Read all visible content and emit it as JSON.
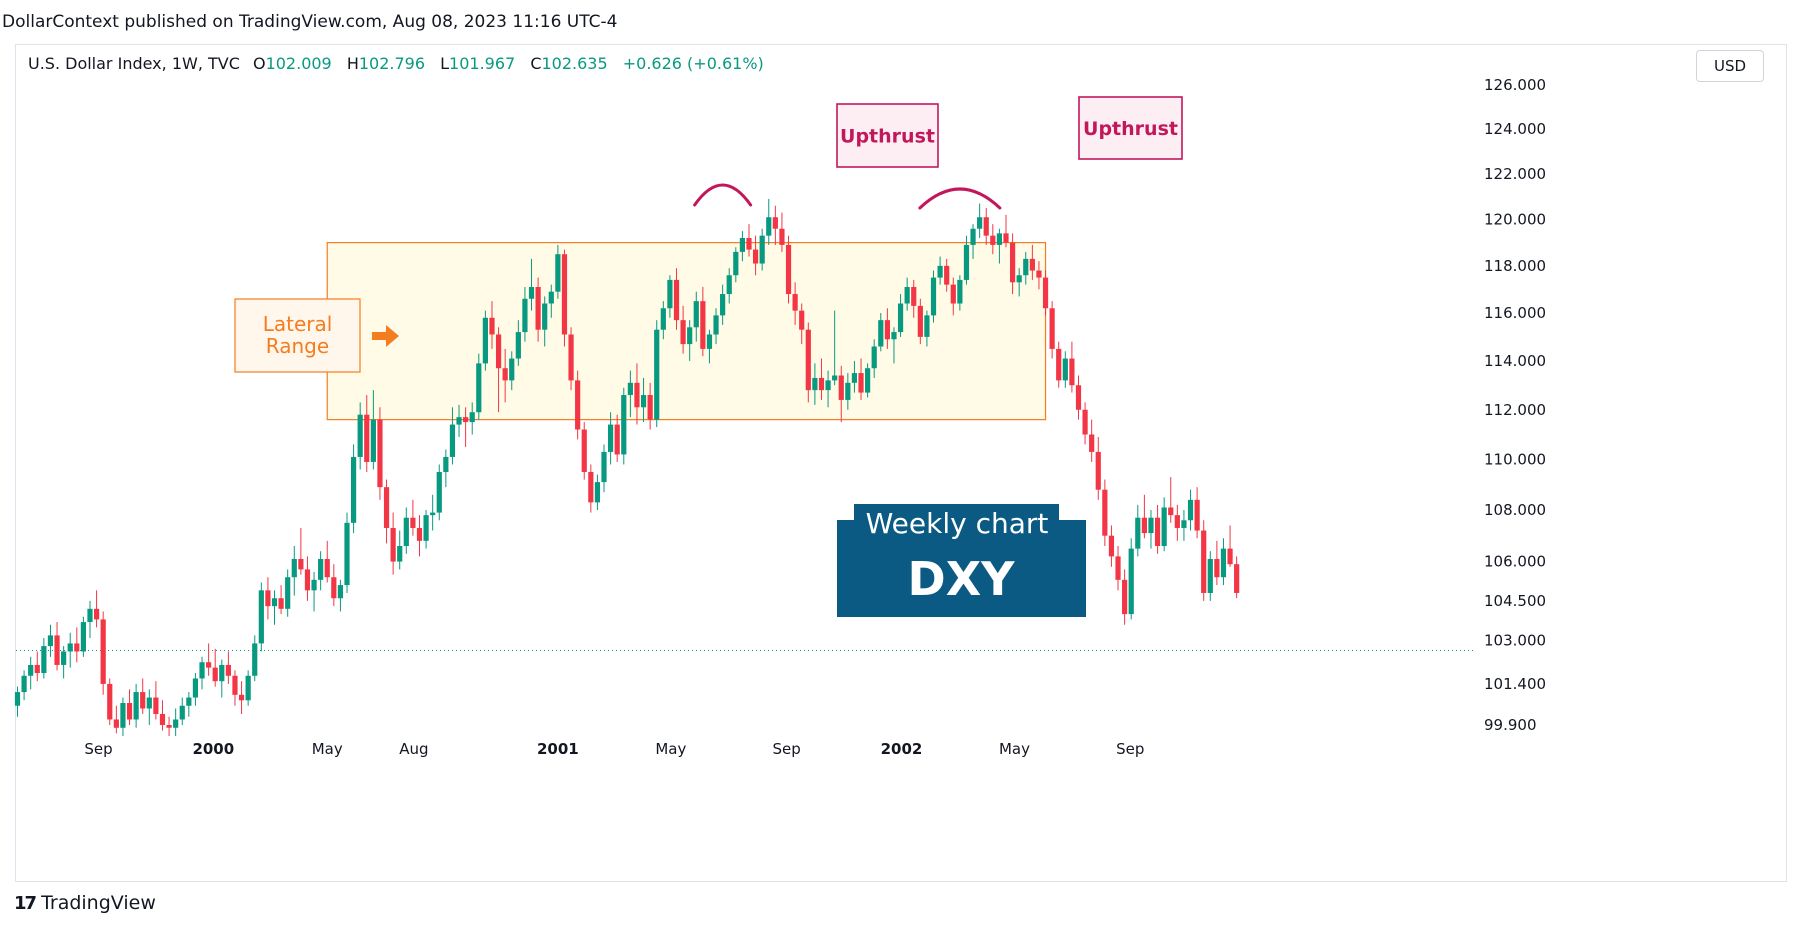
{
  "publish_header": "DollarContext published on TradingView.com, Aug 08, 2023 11:16 UTC-4",
  "legend": {
    "symbol": "U.S. Dollar Index, 1W, TVC",
    "open_label": "O",
    "open": "102.009",
    "high_label": "H",
    "high": "102.796",
    "low_label": "L",
    "low": "101.967",
    "close_label": "C",
    "close": "102.635",
    "change": "+0.626 (+0.61%)"
  },
  "currency": "USD",
  "footer_brand": "TradingView",
  "colors": {
    "up": "#089981",
    "down": "#f23645",
    "range_fill": "#fffbe6",
    "range_border": "#f57c1f",
    "upthrust": "#c2185b",
    "badge": "#0b5a84"
  },
  "chart_data": {
    "type": "candlestick",
    "title": "",
    "xlabel": "",
    "ylabel": "",
    "y_scale": "log",
    "ylim": [
      99.9,
      126.0
    ],
    "y_ticks": [
      126.0,
      124.0,
      122.0,
      120.0,
      118.0,
      116.0,
      114.0,
      112.0,
      110.0,
      108.0,
      106.0,
      104.5,
      103.0,
      101.4,
      99.9
    ],
    "y_tick_labels": [
      "126.000",
      "124.000",
      "122.000",
      "120.000",
      "118.000",
      "116.000",
      "114.000",
      "112.000",
      "110.000",
      "108.000",
      "106.000",
      "104.500",
      "103.000",
      "101.400",
      "99.900"
    ],
    "x_tick_labels": [
      "Sep",
      "2000",
      "May",
      "Aug",
      "2001",
      "May",
      "Sep",
      "2002",
      "May",
      "Sep"
    ],
    "x_tick_dates": [
      "1999-09-01",
      "2000-01-01",
      "2000-05-01",
      "2000-08-01",
      "2001-01-01",
      "2001-05-01",
      "2001-09-01",
      "2002-01-01",
      "2002-05-01",
      "2002-09-01"
    ],
    "candles_start": "1999-06-07",
    "candles_interval": "1W",
    "candles": [
      [
        100.6,
        101.3,
        100.2,
        101.1
      ],
      [
        101.1,
        101.9,
        100.8,
        101.7
      ],
      [
        101.7,
        102.4,
        101.2,
        102.1
      ],
      [
        102.1,
        102.6,
        101.5,
        101.8
      ],
      [
        101.8,
        103.1,
        101.6,
        102.8
      ],
      [
        102.8,
        103.6,
        102.4,
        103.2
      ],
      [
        103.2,
        103.7,
        101.9,
        102.1
      ],
      [
        102.1,
        102.8,
        101.6,
        102.6
      ],
      [
        102.6,
        103.3,
        102.0,
        102.9
      ],
      [
        102.9,
        103.5,
        102.2,
        102.6
      ],
      [
        102.6,
        103.9,
        102.4,
        103.7
      ],
      [
        103.7,
        104.5,
        103.1,
        104.2
      ],
      [
        104.2,
        104.9,
        103.5,
        103.8
      ],
      [
        103.8,
        104.1,
        101.0,
        101.4
      ],
      [
        101.4,
        101.6,
        99.9,
        100.1
      ],
      [
        100.1,
        100.6,
        99.6,
        99.8
      ],
      [
        99.8,
        100.9,
        99.5,
        100.7
      ],
      [
        100.7,
        101.2,
        99.9,
        100.1
      ],
      [
        100.1,
        101.4,
        99.8,
        101.1
      ],
      [
        101.1,
        101.6,
        100.3,
        100.5
      ],
      [
        100.5,
        101.2,
        99.9,
        100.9
      ],
      [
        100.9,
        101.5,
        100.1,
        100.3
      ],
      [
        100.3,
        100.8,
        99.7,
        99.9
      ],
      [
        99.9,
        100.2,
        99.5,
        99.8
      ],
      [
        99.8,
        100.5,
        99.5,
        100.1
      ],
      [
        100.1,
        100.9,
        99.9,
        100.6
      ],
      [
        100.6,
        101.1,
        100.2,
        100.9
      ],
      [
        100.9,
        101.8,
        100.6,
        101.6
      ],
      [
        101.6,
        102.4,
        101.2,
        102.2
      ],
      [
        102.2,
        102.9,
        101.7,
        102.0
      ],
      [
        102.0,
        102.7,
        101.3,
        101.5
      ],
      [
        101.5,
        102.3,
        100.9,
        102.1
      ],
      [
        102.1,
        102.6,
        101.4,
        101.7
      ],
      [
        101.7,
        101.9,
        100.6,
        101.0
      ],
      [
        101.0,
        101.5,
        100.3,
        100.8
      ],
      [
        100.8,
        101.9,
        100.6,
        101.7
      ],
      [
        101.7,
        103.2,
        101.5,
        102.9
      ],
      [
        102.9,
        105.2,
        102.6,
        104.9
      ],
      [
        104.9,
        105.4,
        103.8,
        104.3
      ],
      [
        104.3,
        104.9,
        103.6,
        104.6
      ],
      [
        104.6,
        105.1,
        104.0,
        104.2
      ],
      [
        104.2,
        105.7,
        103.9,
        105.4
      ],
      [
        105.4,
        106.6,
        104.7,
        106.1
      ],
      [
        106.1,
        107.3,
        105.5,
        105.7
      ],
      [
        105.7,
        106.2,
        104.5,
        104.9
      ],
      [
        104.9,
        105.6,
        104.1,
        105.3
      ],
      [
        105.3,
        106.4,
        104.9,
        106.1
      ],
      [
        106.1,
        106.8,
        105.2,
        105.4
      ],
      [
        105.4,
        105.9,
        104.3,
        104.6
      ],
      [
        104.6,
        105.3,
        104.1,
        105.1
      ],
      [
        105.1,
        107.9,
        104.8,
        107.5
      ],
      [
        107.5,
        110.6,
        107.1,
        110.1
      ],
      [
        110.1,
        112.3,
        109.6,
        111.8
      ],
      [
        111.8,
        112.6,
        109.5,
        109.9
      ],
      [
        109.9,
        112.8,
        109.6,
        111.6
      ],
      [
        111.6,
        112.1,
        108.4,
        108.9
      ],
      [
        108.9,
        109.2,
        106.7,
        107.3
      ],
      [
        107.3,
        107.9,
        105.5,
        106.0
      ],
      [
        106.0,
        107.2,
        105.7,
        106.6
      ],
      [
        106.6,
        108.1,
        106.3,
        107.7
      ],
      [
        107.7,
        108.4,
        107.0,
        107.3
      ],
      [
        107.3,
        107.8,
        106.2,
        106.8
      ],
      [
        106.8,
        108.0,
        106.5,
        107.8
      ],
      [
        107.8,
        108.6,
        107.2,
        107.9
      ],
      [
        107.9,
        109.8,
        107.6,
        109.5
      ],
      [
        109.5,
        110.4,
        108.9,
        110.1
      ],
      [
        110.1,
        112.1,
        109.8,
        111.4
      ],
      [
        111.4,
        112.2,
        110.9,
        111.7
      ],
      [
        111.7,
        112.1,
        110.5,
        111.5
      ],
      [
        111.5,
        112.3,
        111.0,
        111.9
      ],
      [
        111.9,
        114.3,
        111.6,
        113.9
      ],
      [
        113.9,
        116.1,
        113.6,
        115.8
      ],
      [
        115.8,
        116.5,
        114.5,
        115.1
      ],
      [
        115.1,
        115.4,
        111.9,
        113.7
      ],
      [
        113.7,
        114.5,
        112.3,
        113.2
      ],
      [
        113.2,
        114.4,
        112.8,
        114.1
      ],
      [
        114.1,
        115.7,
        113.8,
        115.2
      ],
      [
        115.2,
        117.1,
        114.8,
        116.6
      ],
      [
        116.6,
        118.3,
        116.1,
        117.1
      ],
      [
        117.1,
        117.5,
        114.8,
        115.3
      ],
      [
        115.3,
        116.7,
        114.6,
        116.4
      ],
      [
        116.4,
        117.2,
        115.8,
        116.9
      ],
      [
        116.9,
        118.9,
        116.6,
        118.5
      ],
      [
        118.5,
        118.7,
        114.6,
        115.1
      ],
      [
        115.1,
        115.4,
        112.8,
        113.2
      ],
      [
        113.2,
        113.6,
        110.8,
        111.2
      ],
      [
        111.2,
        111.5,
        109.2,
        109.5
      ],
      [
        109.5,
        109.8,
        107.9,
        108.3
      ],
      [
        108.3,
        109.4,
        108.0,
        109.1
      ],
      [
        109.1,
        110.6,
        108.7,
        110.3
      ],
      [
        110.3,
        111.9,
        109.8,
        111.4
      ],
      [
        111.4,
        111.8,
        109.9,
        110.2
      ],
      [
        110.2,
        112.9,
        109.8,
        112.6
      ],
      [
        112.6,
        113.6,
        111.7,
        113.1
      ],
      [
        113.1,
        113.9,
        111.4,
        112.1
      ],
      [
        112.1,
        113.3,
        111.5,
        112.6
      ],
      [
        112.6,
        113.1,
        111.2,
        111.6
      ],
      [
        111.6,
        115.7,
        111.3,
        115.3
      ],
      [
        115.3,
        116.5,
        114.9,
        116.2
      ],
      [
        116.2,
        117.6,
        115.8,
        117.4
      ],
      [
        117.4,
        117.9,
        115.3,
        115.7
      ],
      [
        115.7,
        116.3,
        114.3,
        114.7
      ],
      [
        114.7,
        115.7,
        114.0,
        115.4
      ],
      [
        115.4,
        116.9,
        114.8,
        116.5
      ],
      [
        116.5,
        117.1,
        114.2,
        114.5
      ],
      [
        114.5,
        115.3,
        113.9,
        115.1
      ],
      [
        115.1,
        116.2,
        114.7,
        115.9
      ],
      [
        115.9,
        117.2,
        115.5,
        116.8
      ],
      [
        116.8,
        117.9,
        116.4,
        117.6
      ],
      [
        117.6,
        118.8,
        117.3,
        118.6
      ],
      [
        118.6,
        119.5,
        118.2,
        119.2
      ],
      [
        119.2,
        119.8,
        118.4,
        118.7
      ],
      [
        118.7,
        119.3,
        117.6,
        118.1
      ],
      [
        118.1,
        119.6,
        117.8,
        119.3
      ],
      [
        119.3,
        120.9,
        118.9,
        120.1
      ],
      [
        120.1,
        120.6,
        118.9,
        119.6
      ],
      [
        119.6,
        120.3,
        118.6,
        118.9
      ],
      [
        118.9,
        119.3,
        116.4,
        116.8
      ],
      [
        116.8,
        117.3,
        115.5,
        116.1
      ],
      [
        116.1,
        116.4,
        114.7,
        115.3
      ],
      [
        115.3,
        115.6,
        112.3,
        112.8
      ],
      [
        112.8,
        113.9,
        112.2,
        113.3
      ],
      [
        113.3,
        114.1,
        112.4,
        112.8
      ],
      [
        112.8,
        113.6,
        112.1,
        113.2
      ],
      [
        113.2,
        116.1,
        113.0,
        113.4
      ],
      [
        113.4,
        113.8,
        111.5,
        112.4
      ],
      [
        112.4,
        113.5,
        112.0,
        113.1
      ],
      [
        113.1,
        114.0,
        112.7,
        113.5
      ],
      [
        113.5,
        114.1,
        112.4,
        112.7
      ],
      [
        112.7,
        113.9,
        112.5,
        113.7
      ],
      [
        113.7,
        114.9,
        113.3,
        114.6
      ],
      [
        114.6,
        116.0,
        114.4,
        115.7
      ],
      [
        115.7,
        116.2,
        114.5,
        114.9
      ],
      [
        114.9,
        115.4,
        113.9,
        115.2
      ],
      [
        115.2,
        116.8,
        115.0,
        116.4
      ],
      [
        116.4,
        117.5,
        116.1,
        117.1
      ],
      [
        117.1,
        117.4,
        115.8,
        116.3
      ],
      [
        116.3,
        116.6,
        114.7,
        115.0
      ],
      [
        115.0,
        116.1,
        114.6,
        115.9
      ],
      [
        115.9,
        117.8,
        115.6,
        117.5
      ],
      [
        117.5,
        118.4,
        117.2,
        118.0
      ],
      [
        118.0,
        118.3,
        116.9,
        117.2
      ],
      [
        117.2,
        117.5,
        115.9,
        116.4
      ],
      [
        116.4,
        117.6,
        116.1,
        117.4
      ],
      [
        117.4,
        119.3,
        117.2,
        118.9
      ],
      [
        118.9,
        119.8,
        118.3,
        119.6
      ],
      [
        119.6,
        120.7,
        119.2,
        120.1
      ],
      [
        120.1,
        120.5,
        118.9,
        119.3
      ],
      [
        119.3,
        119.8,
        118.5,
        118.9
      ],
      [
        118.9,
        119.6,
        118.1,
        119.4
      ],
      [
        119.4,
        120.2,
        118.8,
        119.0
      ],
      [
        119.0,
        119.4,
        116.8,
        117.3
      ],
      [
        117.3,
        117.9,
        116.7,
        117.6
      ],
      [
        117.6,
        118.6,
        117.2,
        118.3
      ],
      [
        118.3,
        118.9,
        117.4,
        117.8
      ],
      [
        117.8,
        118.2,
        117.0,
        117.5
      ],
      [
        117.5,
        117.8,
        115.9,
        116.2
      ],
      [
        116.2,
        116.5,
        114.1,
        114.5
      ],
      [
        114.5,
        114.8,
        112.9,
        113.2
      ],
      [
        113.2,
        114.4,
        112.9,
        114.1
      ],
      [
        114.1,
        114.8,
        112.7,
        113.0
      ],
      [
        113.0,
        113.4,
        111.6,
        112.0
      ],
      [
        112.0,
        112.3,
        110.6,
        111.0
      ],
      [
        111.0,
        111.6,
        109.9,
        110.3
      ],
      [
        110.3,
        110.9,
        108.4,
        108.8
      ],
      [
        108.8,
        109.2,
        106.6,
        107.0
      ],
      [
        107.0,
        107.4,
        105.8,
        106.2
      ],
      [
        106.2,
        106.6,
        104.9,
        105.3
      ],
      [
        105.3,
        105.7,
        103.6,
        104.0
      ],
      [
        104.0,
        106.9,
        103.8,
        106.5
      ],
      [
        106.5,
        108.2,
        106.2,
        107.7
      ],
      [
        107.7,
        108.6,
        106.9,
        107.1
      ],
      [
        107.1,
        108.0,
        106.5,
        107.7
      ],
      [
        107.7,
        108.2,
        106.3,
        106.6
      ],
      [
        106.6,
        108.5,
        106.4,
        108.1
      ],
      [
        108.1,
        109.3,
        107.5,
        107.8
      ],
      [
        107.8,
        108.2,
        106.8,
        107.3
      ],
      [
        107.3,
        108.0,
        106.8,
        107.6
      ],
      [
        107.6,
        108.8,
        107.2,
        108.4
      ],
      [
        108.4,
        108.9,
        106.9,
        107.2
      ],
      [
        107.2,
        107.6,
        104.5,
        104.8
      ],
      [
        104.8,
        106.4,
        104.5,
        106.1
      ],
      [
        106.1,
        106.8,
        105.1,
        105.4
      ],
      [
        105.4,
        106.9,
        105.1,
        106.5
      ],
      [
        106.5,
        107.4,
        105.8,
        105.9
      ],
      [
        105.9,
        106.2,
        104.6,
        104.8
      ]
    ],
    "annotations": [
      {
        "type": "rectangle",
        "label": "Lateral Range",
        "price_top": 119.0,
        "price_bottom": 111.6,
        "start_date": "2000-05-01",
        "end_date": "2002-06-03"
      },
      {
        "type": "arc_label",
        "label": "Upthrust",
        "date": "2001-06-25"
      },
      {
        "type": "arc_label",
        "label": "Upthrust",
        "date": "2002-03-04"
      },
      {
        "type": "reference_line",
        "price": 102.635
      }
    ],
    "badge": {
      "line1": "Weekly chart",
      "line2": "DXY"
    }
  }
}
